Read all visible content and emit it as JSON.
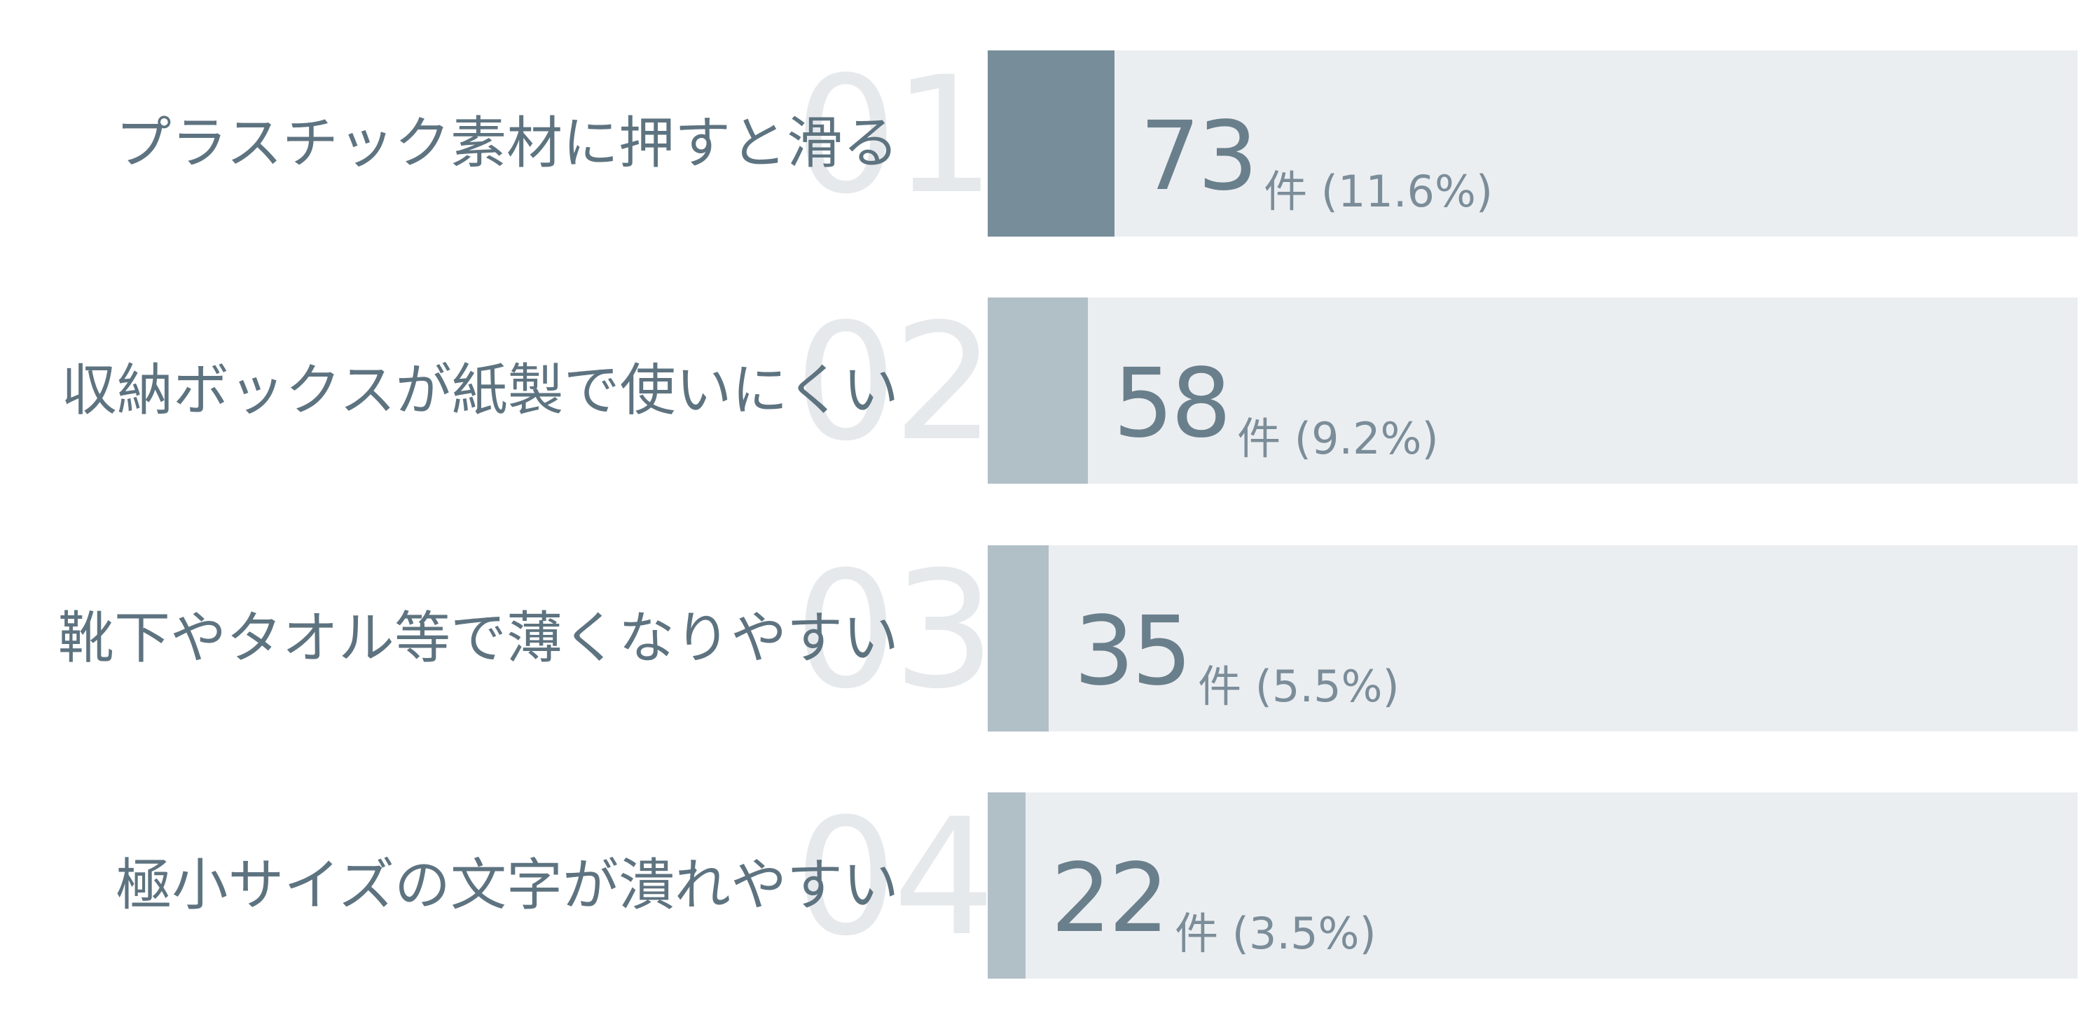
{
  "chart_data": {
    "type": "bar",
    "orientation": "horizontal",
    "categories": [
      "プラスチック素材に押すと滑る",
      "収納ボックスが紙製で使いにくい",
      "靴下やタオル等で薄くなりやすい",
      "極小サイズの文字が潰れやすい"
    ],
    "ranks": [
      "01",
      "02",
      "03",
      "04"
    ],
    "values": [
      73,
      58,
      35,
      22
    ],
    "percents": [
      "11.6%",
      "9.2%",
      "5.5%",
      "3.5%"
    ],
    "unit": "件",
    "value_labels": [
      "件 (11.6%)",
      "件 (9.2%)",
      "件 (5.5%)",
      "件 (3.5%)"
    ],
    "xlim": [
      0,
      629
    ],
    "grid": false,
    "legend": "none",
    "colors": {
      "top_fill": "#778e9a",
      "other_fill": "#b1bfc7",
      "track": "#ebeef1",
      "label_text": "#5e7380",
      "rank_text": "#e6e9ec"
    }
  }
}
